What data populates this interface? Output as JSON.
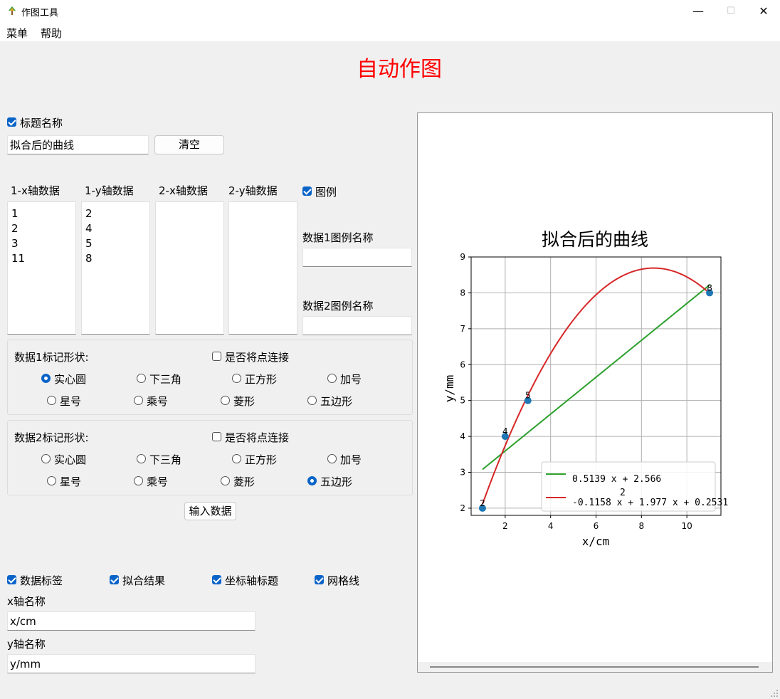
{
  "window": {
    "title": "作图工具",
    "minimize": "—",
    "maximize": "☐",
    "close": "✕"
  },
  "menu": {
    "items": [
      "菜单",
      "帮助"
    ]
  },
  "heading": "自动作图",
  "title_section": {
    "checkbox_label": "标题名称",
    "title_value": "拟合后的曲线",
    "clear_label": "清空"
  },
  "columns": {
    "headers": [
      "1-x轴数据",
      "1-y轴数据",
      "2-x轴数据",
      "2-y轴数据"
    ],
    "x1": [
      "1",
      "2",
      "3",
      "11"
    ],
    "y1": [
      "2",
      "4",
      "5",
      "8"
    ],
    "x2": [],
    "y2": []
  },
  "legend_section": {
    "checkbox_label": "图例",
    "data1_label": "数据1图例名称",
    "data1_value": "",
    "data2_label": "数据2图例名称",
    "data2_value": ""
  },
  "marker1": {
    "title": "数据1标记形状:",
    "connect_label": "是否将点连接",
    "options": [
      "实心圆",
      "下三角",
      "正方形",
      "加号",
      "星号",
      "乘号",
      "菱形",
      "五边形"
    ],
    "selected": "实心圆"
  },
  "marker2": {
    "title": "数据2标记形状:",
    "connect_label": "是否将点连接",
    "options": [
      "实心圆",
      "下三角",
      "正方形",
      "加号",
      "星号",
      "乘号",
      "菱形",
      "五边形"
    ],
    "selected": "五边形"
  },
  "input_button": "输入数据",
  "options_row": {
    "data_label": "数据标签",
    "fit_result": "拟合结果",
    "axis_title": "坐标轴标题",
    "grid": "网格线"
  },
  "axis_names": {
    "x_label": "x轴名称",
    "x_value": "x/cm",
    "y_label": "y轴名称",
    "y_value": "y/mm"
  },
  "colors": {
    "heading": "#ff0000",
    "accent": "#0a64c8",
    "points": "#1f77b4",
    "linear_fit": "#2ca02c",
    "quad_fit": "#d62728"
  },
  "chart_data": {
    "type": "scatter",
    "title": "拟合后的曲线",
    "xlabel": "x/cm",
    "ylabel": "y/mm",
    "xlim": [
      0.5,
      11.5
    ],
    "ylim": [
      1.8,
      9.0
    ],
    "xticks": [
      2,
      4,
      6,
      8,
      10
    ],
    "yticks": [
      2,
      3,
      4,
      5,
      6,
      7,
      8,
      9
    ],
    "grid": true,
    "points": {
      "x": [
        1,
        2,
        3,
        11
      ],
      "y": [
        2,
        4,
        5,
        8
      ],
      "labels": [
        "2",
        "4",
        "5",
        "8"
      ]
    },
    "fits": [
      {
        "name": "0.5139 x + 2.566",
        "coeffs": [
          0,
          0.5139,
          2.566
        ]
      },
      {
        "name": "-0.1158 x + 1.977 x + 0.2531",
        "exponent_label": "2",
        "coeffs": [
          -0.1158,
          1.977,
          0.2531
        ]
      }
    ],
    "legend_position": "lower-right"
  }
}
